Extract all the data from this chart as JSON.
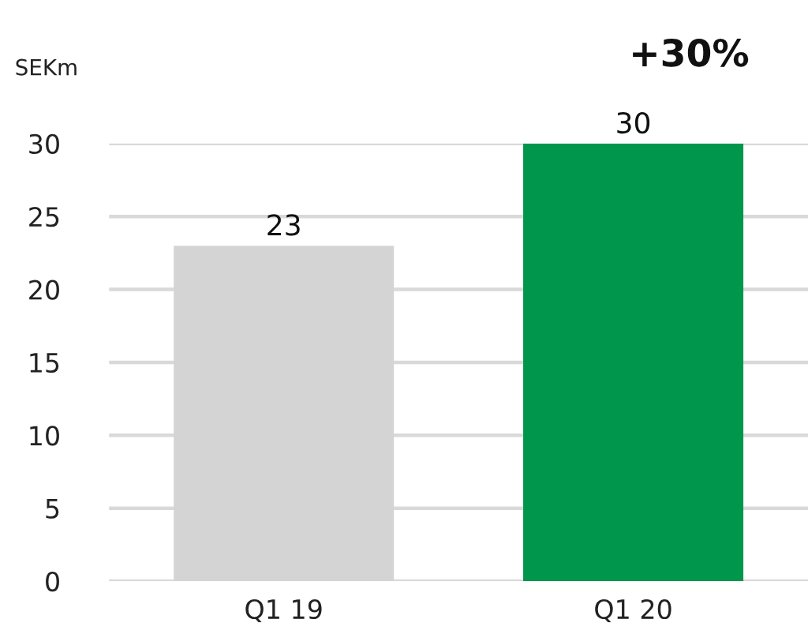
{
  "chart_data": {
    "type": "bar",
    "title": "+30%",
    "ylabel": "SEKm",
    "categories": [
      "Q1 19",
      "Q1 20"
    ],
    "values": [
      23,
      30
    ],
    "colors": [
      "#d4d4d4",
      "#00964b"
    ],
    "ylim": [
      0,
      30
    ],
    "yticks": [
      0,
      5,
      10,
      15,
      20,
      25,
      30
    ],
    "grid": "y",
    "data_labels": true,
    "legend": false
  }
}
